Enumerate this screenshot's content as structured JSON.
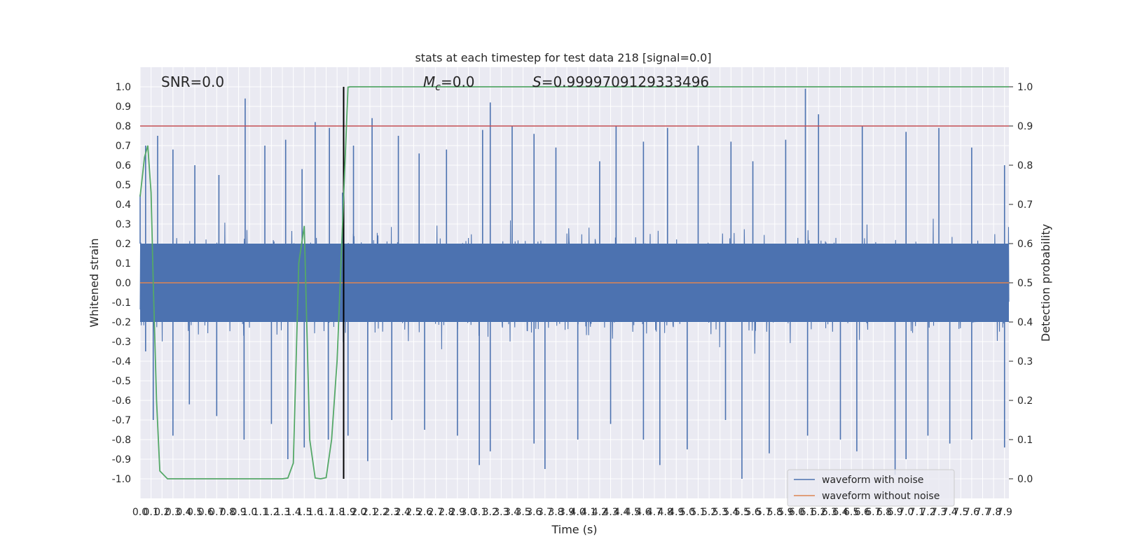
{
  "chart_data": {
    "type": "line",
    "title": "stats at each timestep for test data 218 [signal=0.0]",
    "xlabel": "Time (s)",
    "ylabel": "Whitened strain",
    "ylabel_right": "Detection probability",
    "xlim": [
      0.0,
      7.94
    ],
    "ylim": [
      -1.1,
      1.1
    ],
    "ylim_right": [
      -0.05,
      1.05
    ],
    "grid": true,
    "legend_position": "lower-right",
    "annotations": {
      "snr": "SNR=0.0",
      "mc_symbol": "M",
      "mc_sub": "c",
      "mc_value": "=0.0",
      "s_symbol": "S",
      "s_value": "=0.9999709129333496"
    },
    "x_ticks": [
      "0.0",
      "0.1",
      "0.2",
      "0.3",
      "0.4",
      "0.5",
      "0.6",
      "0.7",
      "0.8",
      "0.9",
      "1.0",
      "1.1",
      "1.2",
      "1.3",
      "1.4",
      "1.5",
      "1.6",
      "1.7",
      "1.8",
      "1.9",
      "2.0",
      "2.1",
      "2.2",
      "2.3",
      "2.4",
      "2.5",
      "2.6",
      "2.7",
      "2.8",
      "2.9",
      "3.0",
      "3.1",
      "3.2",
      "3.3",
      "3.4",
      "3.5",
      "3.6",
      "3.7",
      "3.8",
      "3.9",
      "4.0",
      "4.1",
      "4.2",
      "4.3",
      "4.4",
      "4.5",
      "4.6",
      "4.7",
      "4.8",
      "4.9",
      "5.0",
      "5.1",
      "5.2",
      "5.3",
      "5.4",
      "5.5",
      "5.6",
      "5.7",
      "5.8",
      "5.9",
      "6.0",
      "6.1",
      "6.2",
      "6.3",
      "6.4",
      "6.5",
      "6.6",
      "6.7",
      "6.8",
      "6.9",
      "7.0",
      "7.1",
      "7.2",
      "7.3",
      "7.4",
      "7.5",
      "7.6",
      "7.7",
      "7.8",
      "7.9"
    ],
    "y_ticks": [
      "1.0",
      "0.9",
      "0.8",
      "0.7",
      "0.6",
      "0.5",
      "0.4",
      "0.3",
      "0.2",
      "0.1",
      "0.0",
      "-0.1",
      "-0.2",
      "-0.3",
      "-0.4",
      "-0.5",
      "-0.6",
      "-0.7",
      "-0.8",
      "-0.9",
      "-1.0"
    ],
    "y_ticks_right": [
      "1.0",
      "0.9",
      "0.8",
      "0.7",
      "0.6",
      "0.5",
      "0.4",
      "0.3",
      "0.2",
      "0.1",
      "0.0"
    ],
    "threshold": {
      "value": 0.9,
      "axis": "right",
      "color": "#c44e52"
    },
    "marker_time": 1.86,
    "series": [
      {
        "name": "waveform with noise",
        "color": "#4c72b0",
        "peaks_positive": [
          [
            0.0,
            0.45
          ],
          [
            0.05,
            0.7
          ],
          [
            0.16,
            0.75
          ],
          [
            0.3,
            0.68
          ],
          [
            0.5,
            0.6
          ],
          [
            0.72,
            0.55
          ],
          [
            0.96,
            0.94
          ],
          [
            1.14,
            0.7
          ],
          [
            1.33,
            0.73
          ],
          [
            1.48,
            0.58
          ],
          [
            1.6,
            0.82
          ],
          [
            1.73,
            0.79
          ],
          [
            1.85,
            0.46
          ],
          [
            1.95,
            0.7
          ],
          [
            2.12,
            0.84
          ],
          [
            2.36,
            0.75
          ],
          [
            2.55,
            0.66
          ],
          [
            2.8,
            0.68
          ],
          [
            3.13,
            0.78
          ],
          [
            3.2,
            0.92
          ],
          [
            3.4,
            0.8
          ],
          [
            3.6,
            0.76
          ],
          [
            3.8,
            0.69
          ],
          [
            4.2,
            0.62
          ],
          [
            4.35,
            0.8
          ],
          [
            4.6,
            0.72
          ],
          [
            4.82,
            0.79
          ],
          [
            5.1,
            0.7
          ],
          [
            5.4,
            0.72
          ],
          [
            5.6,
            0.62
          ],
          [
            5.9,
            0.73
          ],
          [
            6.08,
            0.99
          ],
          [
            6.2,
            0.86
          ],
          [
            6.6,
            0.8
          ],
          [
            7.0,
            0.77
          ],
          [
            7.3,
            0.79
          ],
          [
            7.6,
            0.69
          ],
          [
            7.9,
            0.6
          ]
        ],
        "peaks_negative": [
          [
            0.05,
            -0.35
          ],
          [
            0.12,
            -0.7
          ],
          [
            0.3,
            -0.78
          ],
          [
            0.45,
            -0.62
          ],
          [
            0.7,
            -0.68
          ],
          [
            0.95,
            -0.8
          ],
          [
            1.2,
            -0.72
          ],
          [
            1.35,
            -0.9
          ],
          [
            1.5,
            -0.84
          ],
          [
            1.72,
            -0.8
          ],
          [
            1.9,
            -0.78
          ],
          [
            2.08,
            -0.91
          ],
          [
            2.3,
            -0.7
          ],
          [
            2.6,
            -0.75
          ],
          [
            2.9,
            -0.78
          ],
          [
            3.1,
            -0.93
          ],
          [
            3.2,
            -0.86
          ],
          [
            3.6,
            -0.82
          ],
          [
            3.7,
            -0.95
          ],
          [
            4.0,
            -0.8
          ],
          [
            4.3,
            -0.72
          ],
          [
            4.6,
            -0.8
          ],
          [
            4.75,
            -0.93
          ],
          [
            5.0,
            -0.85
          ],
          [
            5.35,
            -0.7
          ],
          [
            5.5,
            -1.0
          ],
          [
            5.75,
            -0.87
          ],
          [
            6.1,
            -0.78
          ],
          [
            6.4,
            -0.8
          ],
          [
            6.55,
            -0.86
          ],
          [
            6.9,
            -0.98
          ],
          [
            7.0,
            -0.9
          ],
          [
            7.2,
            -0.78
          ],
          [
            7.4,
            -0.82
          ],
          [
            7.6,
            -0.8
          ],
          [
            7.9,
            -0.84
          ]
        ],
        "band_limits": [
          -0.2,
          0.2
        ]
      },
      {
        "name": "waveform without noise",
        "color": "#dd8452",
        "x": [
          0.0,
          7.94
        ],
        "y": [
          0.0,
          0.0
        ]
      },
      {
        "name": "detection probability",
        "color": "#55a868",
        "axis": "right",
        "x": [
          0.0,
          0.04,
          0.07,
          0.1,
          0.12,
          0.15,
          0.18,
          0.25,
          0.5,
          0.9,
          1.3,
          1.35,
          1.4,
          1.45,
          1.5,
          1.55,
          1.6,
          1.65,
          1.7,
          1.75,
          1.8,
          1.85,
          1.9,
          1.92,
          1.95,
          7.94
        ],
        "y": [
          0.72,
          0.82,
          0.85,
          0.73,
          0.5,
          0.2,
          0.02,
          0.0,
          0.0,
          0.0,
          0.0,
          0.002,
          0.04,
          0.55,
          0.645,
          0.1,
          0.002,
          0.0,
          0.003,
          0.1,
          0.3,
          0.65,
          0.999,
          1.0,
          1.0,
          1.0
        ]
      }
    ]
  }
}
